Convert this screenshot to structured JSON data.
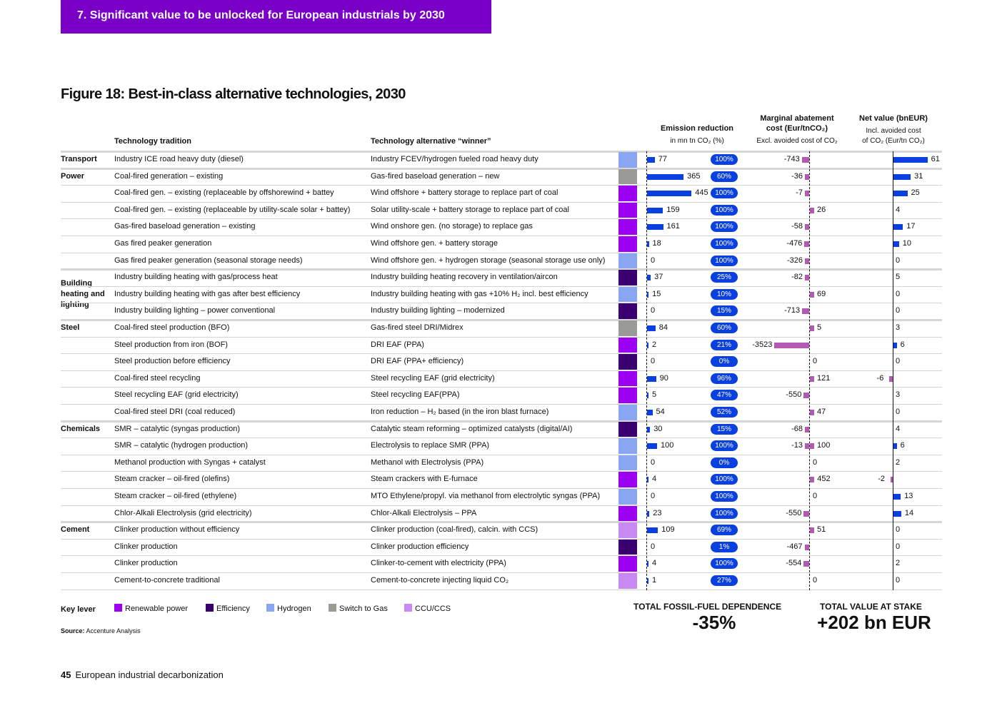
{
  "banner": "7. Significant value to be unlocked for European industrials by 2030",
  "figure_title": "Figure 18: Best-in-class alternative technologies, 2030",
  "headers": {
    "tradition": "Technology tradition",
    "alternative": "Technology alternative “winner”",
    "emission_title": "Emission reduction",
    "emission_sub": "in mn tn CO₂ (%)",
    "mac_title": "Marginal abatement",
    "mac_title2": "cost (Eur/tnCO₂)",
    "mac_sub": "Excl. avoided cost of CO₂",
    "net_title": "Net value (bnEUR)",
    "net_sub1": "Incl. avoided cost",
    "net_sub2": "of CO₂ (Eur/tn CO₂)"
  },
  "colors": {
    "renewable": "#9b00f0",
    "efficiency": "#3b0070",
    "hydrogen": "#8aa6f2",
    "gas": "#9a9a96",
    "ccu": "#c88af2",
    "bar_blue": "#0a3fe0",
    "bar_pink": "#b25ab2"
  },
  "rows": [
    {
      "sector": "Transport",
      "tradition": "Industry ICE road heavy duty (diesel)",
      "alternative": "Industry FCEV/hydrogen fueled road heavy duty",
      "lever": "hydrogen",
      "emission": 77,
      "pct": "100%",
      "mac": -743,
      "net": 61
    },
    {
      "sector": "Power",
      "tradition": "Coal-fired generation – existing",
      "alternative": "Gas-fired baseload generation – new",
      "lever": "gas",
      "emission": 365,
      "pct": "60%",
      "mac": -36,
      "net": 31
    },
    {
      "sector": "",
      "tradition": "Coal-fired gen. – existing (replaceable by offshorewind + battey",
      "alternative": "Wind offshore + battery storage to replace  part of coal",
      "lever": "renewable",
      "emission": 445,
      "pct": "100%",
      "mac": -7,
      "net": 25
    },
    {
      "sector": "",
      "tradition": "Coal-fired gen. – existing (replaceable by utility-scale solar + battey)",
      "alternative": "Solar utility-scale + battery storage to replace part of coal",
      "lever": "renewable",
      "emission": 159,
      "pct": "100%",
      "mac": 26,
      "net": 4
    },
    {
      "sector": "",
      "tradition": "Gas-fired baseload generation – existing",
      "alternative": "Wind onshore gen. (no storage) to replace gas",
      "lever": "renewable",
      "emission": 161,
      "pct": "100%",
      "mac": -58,
      "net": 17
    },
    {
      "sector": "",
      "tradition": "Gas fired peaker generation",
      "alternative": "Wind offshore gen. + battery storage",
      "lever": "renewable",
      "emission": 18,
      "pct": "100%",
      "mac": -476,
      "net": 10
    },
    {
      "sector": "",
      "tradition": "Gas fired peaker generation (seasonal storage needs)",
      "alternative": "Wind offshore gen. + hydrogen storage (seasonal storage use only)",
      "lever": "hydrogen",
      "emission": 0,
      "pct": "100%",
      "mac": -326,
      "net": 0
    },
    {
      "sector": "Building heating and lighting",
      "tradition": "Industry building heating with gas/process heat",
      "alternative": "Industry building heating recovery in ventilation/aircon",
      "lever": "efficiency",
      "emission": 37,
      "pct": "25%",
      "mac": -82,
      "net": 5
    },
    {
      "sector": "",
      "tradition": "Industry building heating with gas after best efficiency",
      "alternative": "Industry building heating with gas +10% H₂ incl. best efficiency",
      "lever": "hydrogen",
      "emission": 15,
      "pct": "10%",
      "mac": 69,
      "net": 0
    },
    {
      "sector": "",
      "tradition": "Industry building lighting – power conventional",
      "alternative": "Industry building lighting – modernized",
      "lever": "efficiency",
      "emission": 0,
      "pct": "15%",
      "mac": -713,
      "net": 0
    },
    {
      "sector": "Steel",
      "tradition": "Coal-fired steel production (BFO)",
      "alternative": "Gas-fired steel DRI/Midrex",
      "lever": "gas",
      "emission": 84,
      "pct": "60%",
      "mac": 5,
      "net": 3
    },
    {
      "sector": "",
      "tradition": "Steel production from iron (BOF)",
      "alternative": "DRI EAF (PPA)",
      "lever": "renewable",
      "emission": 2,
      "pct": "21%",
      "mac": -3523,
      "net": 6
    },
    {
      "sector": "",
      "tradition": "Steel production before efficiency",
      "alternative": "DRI EAF (PPA+ efficiency)",
      "lever": "efficiency",
      "emission": 0,
      "pct": "0%",
      "mac": 0,
      "net": 0
    },
    {
      "sector": "",
      "tradition": "Coal-fired steel recycling",
      "alternative": "Steel recycling EAF (grid electricity)",
      "lever": "renewable",
      "emission": 90,
      "pct": "96%",
      "mac": 121,
      "net": -6
    },
    {
      "sector": "",
      "tradition": "Steel recycling EAF (grid electricity)",
      "alternative": "Steel recycling EAF(PPA)",
      "lever": "renewable",
      "emission": 5,
      "pct": "47%",
      "mac": -550,
      "net": 3
    },
    {
      "sector": "",
      "tradition": "Coal-fired steel DRI (coal reduced)",
      "alternative": "Iron reduction – H₂ based (in the iron blast furnace)",
      "lever": "hydrogen",
      "emission": 54,
      "pct": "52%",
      "mac": 47,
      "net": 0
    },
    {
      "sector": "Chemicals",
      "tradition": "SMR – catalytic (syngas production)",
      "alternative": "Catalytic steam reforming – optimized catalysts (digital/AI)",
      "lever": "efficiency",
      "emission": 30,
      "pct": "15%",
      "mac": -68,
      "net": 4
    },
    {
      "sector": "",
      "tradition": "SMR – catalytic (hydrogen production)",
      "alternative": "Electrolysis to replace SMR (PPA)",
      "lever": "hydrogen",
      "emission": 100,
      "pct": "100%",
      "mac": -13,
      "mac2": 100,
      "net": 6
    },
    {
      "sector": "",
      "tradition": "Methanol production with Syngas + catalyst",
      "alternative": "Methanol with Electrolysis (PPA)",
      "lever": "hydrogen",
      "emission": 0,
      "pct": "0%",
      "mac": 0,
      "net": 2
    },
    {
      "sector": "",
      "tradition": "Steam cracker – oil-fired (olefins)",
      "alternative": "Steam crackers with E-furnace",
      "lever": "renewable",
      "emission": 4,
      "pct": "100%",
      "mac": 452,
      "net": -2
    },
    {
      "sector": "",
      "tradition": "Steam cracker – oil-fired (ethylene)",
      "alternative": "MTO Ethylene/propyl. via methanol from electrolytic syngas (PPA)",
      "lever": "hydrogen",
      "emission": 0,
      "pct": "100%",
      "mac": 0,
      "net": 13
    },
    {
      "sector": "",
      "tradition": "Chlor-Alkali Electrolysis (grid electricity)",
      "alternative": "Chlor-Alkali Electrolysis – PPA",
      "lever": "renewable",
      "emission": 23,
      "pct": "100%",
      "mac": -550,
      "net": 14
    },
    {
      "sector": "Cement",
      "tradition": "Clinker production without efficiency",
      "alternative": "Clinker production (coal-fired), calcin. with CCS)",
      "lever": "ccu",
      "emission": 109,
      "pct": "69%",
      "mac": 51,
      "net": 0
    },
    {
      "sector": "",
      "tradition": "Clinker production",
      "alternative": "Clinker production efficiency",
      "lever": "efficiency",
      "emission": 0,
      "pct": "1%",
      "mac": -467,
      "net": 0
    },
    {
      "sector": "",
      "tradition": "Clinker production",
      "alternative": "Clinker-to-cement with electricity (PPA)",
      "lever": "renewable",
      "emission": 4,
      "pct": "100%",
      "mac": -554,
      "net": 2
    },
    {
      "sector": "",
      "tradition": "Cement-to-concrete traditional",
      "alternative": "Cement-to-concrete injecting liquid CO₂",
      "lever": "ccu",
      "emission": 1,
      "pct": "27%",
      "mac": 0,
      "net": 0
    }
  ],
  "legend": {
    "title": "Key lever",
    "items": [
      {
        "key": "renewable",
        "label": "Renewable power"
      },
      {
        "key": "efficiency",
        "label": "Efficiency"
      },
      {
        "key": "hydrogen",
        "label": "Hydrogen"
      },
      {
        "key": "gas",
        "label": "Switch to Gas"
      },
      {
        "key": "ccu",
        "label": "CCU/CCS"
      }
    ]
  },
  "source_label": "Source:",
  "source_text": "Accenture Analysis",
  "totals": {
    "fossil_label": "TOTAL FOSSIL-FUEL DEPENDENCE",
    "fossil_value": "-35%",
    "value_label": "TOTAL VALUE AT STAKE",
    "value_value": "+202 bn EUR"
  },
  "footer": {
    "page": "45",
    "text": "European industrial decarbonization"
  }
}
